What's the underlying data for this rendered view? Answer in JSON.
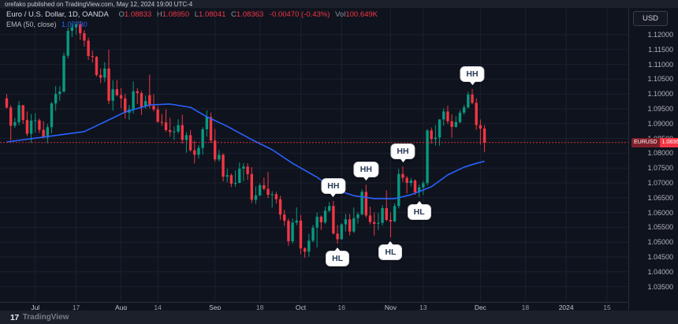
{
  "top_bar": {
    "text": "orefako published on TradingView.com, May 12, 2024 19:00 UTC-4"
  },
  "legend": {
    "symbol_line": {
      "title": "Euro / U.S. Dollar, 1D, OANDA",
      "o_label": "O",
      "o": "1.08833",
      "h_label": "H",
      "h": "1.08950",
      "l_label": "L",
      "l": "1.08041",
      "c_label": "C",
      "c": "1.08363",
      "change": "-0.00470 (-0.43%)",
      "vol_label": "Vol",
      "vol": "100.649K"
    },
    "ema_line": {
      "title": "EMA (50, close)",
      "value": "1.07730"
    }
  },
  "price_axis": {
    "currency_button": "USD",
    "ticks": [
      "1.12000",
      "1.11500",
      "1.11000",
      "1.10500",
      "1.10000",
      "1.09500",
      "1.09000",
      "1.08500",
      "1.08000",
      "1.07500",
      "1.07000",
      "1.06500",
      "1.06000",
      "1.05500",
      "1.05000",
      "1.04500",
      "1.04000",
      "1.03500"
    ],
    "last_price_badge": {
      "symbol": "EURUSD",
      "price": "1.08363"
    }
  },
  "time_axis": {
    "ticks": [
      {
        "label": "Jul",
        "i": 7,
        "major": true
      },
      {
        "label": "17",
        "i": 17,
        "major": false
      },
      {
        "label": "Aug",
        "i": 28,
        "major": true
      },
      {
        "label": "14",
        "i": 37,
        "major": false
      },
      {
        "label": "Sep",
        "i": 51,
        "major": true
      },
      {
        "label": "18",
        "i": 62,
        "major": false
      },
      {
        "label": "Oct",
        "i": 72,
        "major": true
      },
      {
        "label": "16",
        "i": 82,
        "major": false
      },
      {
        "label": "Nov",
        "i": 94,
        "major": true
      },
      {
        "label": "13",
        "i": 102,
        "major": false
      },
      {
        "label": "Dec",
        "i": 116,
        "major": true
      },
      {
        "label": "18",
        "i": 127,
        "major": false
      },
      {
        "label": "2024",
        "i": 137,
        "major": true
      },
      {
        "label": "15",
        "i": 147,
        "major": false
      }
    ]
  },
  "footer": {
    "logo_glyph": "17",
    "logo_text": "TradingView"
  },
  "colors": {
    "up": "#089981",
    "down": "#f23645",
    "ema": "#2962ff",
    "grid": "#1b2130",
    "background": "#0f131d",
    "callout_bg": "#fdfdfd",
    "callout_text": "#2b3b57",
    "badge_symbol_bg": "#7e1f2b",
    "badge_value_bg": "#f23645"
  },
  "chart_data": {
    "type": "candlestick",
    "symbol": "EURUSD",
    "interval": "1D",
    "title": "Euro / U.S. Dollar, 1D, OANDA",
    "ylim": [
      1.0298,
      1.1288
    ],
    "last_price": 1.08363,
    "grid": true,
    "candles": [
      [
        1.0985,
        1.1,
        1.0951,
        1.0954
      ],
      [
        1.0954,
        1.0962,
        1.0844,
        1.0893
      ],
      [
        1.0893,
        1.092,
        1.0885,
        1.0905
      ],
      [
        1.0905,
        1.0976,
        1.0895,
        1.0962
      ],
      [
        1.0962,
        1.0963,
        1.0899,
        1.0912
      ],
      [
        1.0912,
        1.0941,
        1.0858,
        1.0866
      ],
      [
        1.0866,
        1.0932,
        1.0835,
        1.091
      ],
      [
        1.091,
        1.0935,
        1.087,
        1.0911
      ],
      [
        1.0911,
        1.0917,
        1.0868,
        1.0879
      ],
      [
        1.0879,
        1.0908,
        1.085,
        1.0853
      ],
      [
        1.0853,
        1.0899,
        1.0833,
        1.0888
      ],
      [
        1.0888,
        1.0973,
        1.0867,
        1.0968
      ],
      [
        1.0968,
        1.1027,
        1.0944,
        1.1
      ],
      [
        1.1,
        1.1026,
        1.0977,
        1.1008
      ],
      [
        1.1008,
        1.114,
        1.1005,
        1.1129
      ],
      [
        1.1129,
        1.1225,
        1.112,
        1.1213
      ],
      [
        1.1213,
        1.124,
        1.1192,
        1.1225
      ],
      [
        1.1225,
        1.1242,
        1.12,
        1.1235
      ],
      [
        1.1235,
        1.1245,
        1.1183,
        1.1205
      ],
      [
        1.1205,
        1.1215,
        1.116,
        1.118
      ],
      [
        1.118,
        1.119,
        1.1115,
        1.1128
      ],
      [
        1.1128,
        1.1146,
        1.1106,
        1.1125
      ],
      [
        1.1125,
        1.1128,
        1.1059,
        1.1064
      ],
      [
        1.1064,
        1.1086,
        1.1037,
        1.1055
      ],
      [
        1.1055,
        1.1107,
        1.104,
        1.1086
      ],
      [
        1.1086,
        1.1149,
        1.0966,
        1.0977
      ],
      [
        1.0977,
        1.1046,
        1.0944,
        1.1016
      ],
      [
        1.1016,
        1.1047,
        1.0992,
        1.0996
      ],
      [
        1.0996,
        1.102,
        1.0952,
        1.0985
      ],
      [
        1.0985,
        1.1,
        1.0917,
        1.0937
      ],
      [
        1.0937,
        1.0963,
        1.0913,
        1.0948
      ],
      [
        1.0948,
        1.1042,
        1.0933,
        1.1009
      ],
      [
        1.1009,
        1.1019,
        1.0966,
        1.1003
      ],
      [
        1.1003,
        1.101,
        1.0929,
        1.0957
      ],
      [
        1.0957,
        1.0995,
        1.095,
        1.0976
      ],
      [
        1.0996,
        1.1065,
        1.0952,
        1.096
      ],
      [
        1.096,
        1.0999,
        1.0941,
        1.0948
      ],
      [
        1.0948,
        1.0959,
        1.0903,
        1.0906
      ],
      [
        1.0906,
        1.0933,
        1.0892,
        1.0904
      ],
      [
        1.0904,
        1.0948,
        1.0872,
        1.0878
      ],
      [
        1.0878,
        1.092,
        1.0856,
        1.0872
      ],
      [
        1.0872,
        1.0891,
        1.0845,
        1.0873
      ],
      [
        1.0873,
        1.0915,
        1.0866,
        1.0895
      ],
      [
        1.0895,
        1.093,
        1.0833,
        1.0845
      ],
      [
        1.0845,
        1.0872,
        1.0802,
        1.0861
      ],
      [
        1.0861,
        1.0878,
        1.0805,
        1.081
      ],
      [
        1.081,
        1.0842,
        1.0766,
        1.0795
      ],
      [
        1.0795,
        1.0828,
        1.0782,
        1.0818
      ],
      [
        1.0818,
        1.0888,
        1.0796,
        1.0881
      ],
      [
        1.0881,
        1.0945,
        1.0856,
        1.0922
      ],
      [
        1.0922,
        1.0937,
        1.0835,
        1.0843
      ],
      [
        1.0843,
        1.0882,
        1.0771,
        1.0779
      ],
      [
        1.0779,
        1.0812,
        1.0772,
        1.0795
      ],
      [
        1.0795,
        1.08,
        1.0705,
        1.0721
      ],
      [
        1.0721,
        1.0748,
        1.0702,
        1.0726
      ],
      [
        1.0726,
        1.0731,
        1.0686,
        1.0697
      ],
      [
        1.0697,
        1.0742,
        1.0687,
        1.07
      ],
      [
        1.07,
        1.0769,
        1.0699,
        1.0748
      ],
      [
        1.0748,
        1.0767,
        1.0706,
        1.0755
      ],
      [
        1.0755,
        1.0766,
        1.071,
        1.073
      ],
      [
        1.073,
        1.0753,
        1.0632,
        1.0643
      ],
      [
        1.0643,
        1.0688,
        1.0629,
        1.0658
      ],
      [
        1.0658,
        1.0699,
        1.0655,
        1.0692
      ],
      [
        1.0692,
        1.0718,
        1.0675,
        1.068
      ],
      [
        1.068,
        1.0737,
        1.0648,
        1.066
      ],
      [
        1.066,
        1.0672,
        1.0617,
        1.0662
      ],
      [
        1.0662,
        1.067,
        1.063,
        1.0645
      ],
      [
        1.0645,
        1.0657,
        1.0575,
        1.0593
      ],
      [
        1.0593,
        1.0609,
        1.0555,
        1.0572
      ],
      [
        1.0572,
        1.058,
        1.0488,
        1.0503
      ],
      [
        1.0503,
        1.058,
        1.0495,
        1.0566
      ],
      [
        1.0566,
        1.0617,
        1.0557,
        1.0573
      ],
      [
        1.0573,
        1.0592,
        1.0459,
        1.0479
      ],
      [
        1.0479,
        1.0483,
        1.0448,
        1.0468
      ],
      [
        1.0468,
        1.0528,
        1.0451,
        1.0505
      ],
      [
        1.0505,
        1.0558,
        1.05,
        1.0549
      ],
      [
        1.0549,
        1.06,
        1.0482,
        1.0586
      ],
      [
        1.0586,
        1.059,
        1.0541,
        1.0567
      ],
      [
        1.0567,
        1.062,
        1.0561,
        1.0606
      ],
      [
        1.0606,
        1.0635,
        1.0601,
        1.0622
      ],
      [
        1.0622,
        1.0639,
        1.0526,
        1.0529
      ],
      [
        1.0529,
        1.0558,
        1.0495,
        1.051
      ],
      [
        1.051,
        1.0564,
        1.0508,
        1.056
      ],
      [
        1.056,
        1.0595,
        1.0536,
        1.0577
      ],
      [
        1.0577,
        1.0595,
        1.0523,
        1.0536
      ],
      [
        1.0536,
        1.0617,
        1.0531,
        1.0581
      ],
      [
        1.0581,
        1.0601,
        1.0563,
        1.0594
      ],
      [
        1.0594,
        1.0678,
        1.059,
        1.067
      ],
      [
        1.067,
        1.0694,
        1.0583,
        1.059
      ],
      [
        1.059,
        1.062,
        1.056,
        1.0568
      ],
      [
        1.0568,
        1.06,
        1.0522,
        1.0562
      ],
      [
        1.0562,
        1.0598,
        1.0541,
        1.0565
      ],
      [
        1.0565,
        1.0625,
        1.0556,
        1.0615
      ],
      [
        1.0615,
        1.0675,
        1.0571,
        1.0575
      ],
      [
        1.0575,
        1.06,
        1.0516,
        1.057
      ],
      [
        1.057,
        1.0631,
        1.0568,
        1.0622
      ],
      [
        1.0622,
        1.0747,
        1.0614,
        1.073
      ],
      [
        1.073,
        1.0756,
        1.0703,
        1.0717
      ],
      [
        1.0717,
        1.0723,
        1.0664,
        1.07
      ],
      [
        1.07,
        1.0717,
        1.0688,
        1.0708
      ],
      [
        1.0708,
        1.0712,
        1.066,
        1.0668
      ],
      [
        1.0668,
        1.0694,
        1.0652,
        1.0685
      ],
      [
        1.0685,
        1.0706,
        1.066,
        1.0699
      ],
      [
        1.0699,
        1.0882,
        1.0691,
        1.0877
      ],
      [
        1.0877,
        1.0887,
        1.0832,
        1.0848
      ],
      [
        1.0848,
        1.0895,
        1.0826,
        1.0853
      ],
      [
        1.0853,
        1.0915,
        1.0825,
        1.0914
      ],
      [
        1.0914,
        1.0952,
        1.0893,
        1.0941
      ],
      [
        1.0941,
        1.0961,
        1.0899,
        1.0908
      ],
      [
        1.0908,
        1.0931,
        1.0852,
        1.0889
      ],
      [
        1.0889,
        1.0925,
        1.0886,
        1.0905
      ],
      [
        1.0905,
        1.0946,
        1.0901,
        1.0937
      ],
      [
        1.0937,
        1.0963,
        1.093,
        1.0955
      ],
      [
        1.0955,
        1.1008,
        1.0951,
        1.0998
      ],
      [
        1.0998,
        1.1017,
        1.0965,
        1.097
      ],
      [
        1.097,
        1.0985,
        1.0879,
        1.0895
      ],
      [
        1.0895,
        1.0914,
        1.0829,
        1.0883
      ],
      [
        1.08833,
        1.0895,
        1.08041,
        1.08363
      ]
    ],
    "ema50": [
      [
        0,
        1.0838
      ],
      [
        6,
        1.0849
      ],
      [
        12,
        1.086
      ],
      [
        19,
        1.0873
      ],
      [
        29,
        1.0939
      ],
      [
        35,
        1.0963
      ],
      [
        40,
        1.0966
      ],
      [
        45,
        1.0955
      ],
      [
        49,
        1.0923
      ],
      [
        54,
        1.0891
      ],
      [
        60,
        1.0846
      ],
      [
        65,
        1.0812
      ],
      [
        70,
        1.0766
      ],
      [
        76,
        1.0719
      ],
      [
        80,
        1.0679
      ],
      [
        85,
        1.0657
      ],
      [
        90,
        1.0647
      ],
      [
        95,
        1.0647
      ],
      [
        99,
        1.066
      ],
      [
        104,
        1.0687
      ],
      [
        108,
        1.0727
      ],
      [
        112,
        1.0753
      ],
      [
        115,
        1.0766
      ],
      [
        117,
        1.0773
      ]
    ],
    "callouts": [
      {
        "text": "HH",
        "index": 80,
        "side": "above"
      },
      {
        "text": "HL",
        "index": 81,
        "side": "below"
      },
      {
        "text": "HH",
        "index": 88,
        "side": "above"
      },
      {
        "text": "HL",
        "index": 94,
        "side": "below"
      },
      {
        "text": "HH",
        "index": 97,
        "side": "above"
      },
      {
        "text": "HL",
        "index": 101,
        "side": "below"
      },
      {
        "text": "HH",
        "index": 114,
        "side": "above"
      }
    ]
  }
}
